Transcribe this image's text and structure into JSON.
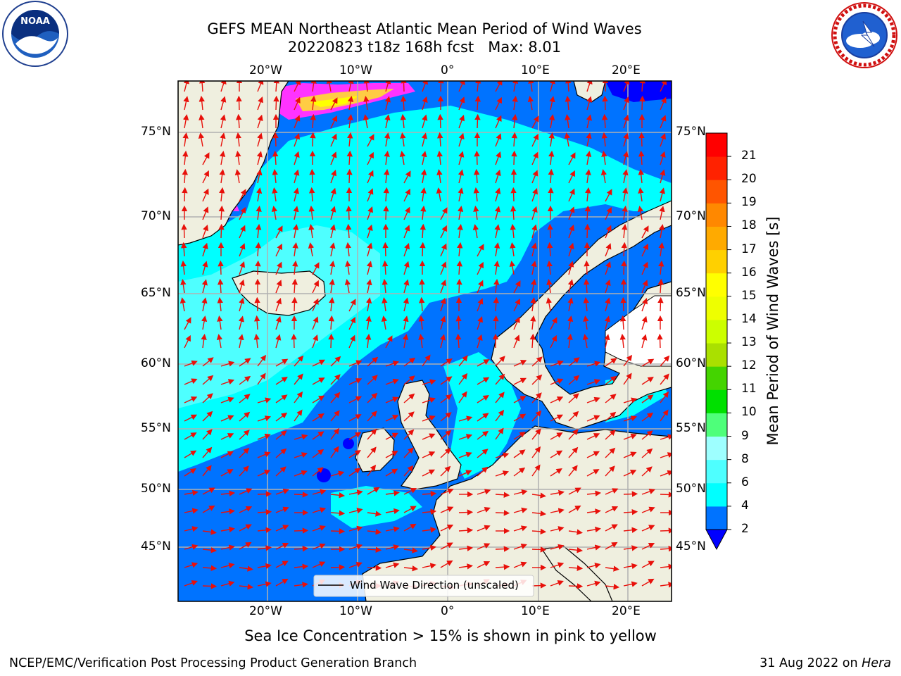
{
  "header": {
    "title_line1": "GEFS MEAN Northeast Atlantic Mean Period of Wind Waves",
    "title_line2": "20220823 t18z 168h fcst   Max: 8.01"
  },
  "logos": {
    "left": "noara-logo",
    "right": "nws-logo",
    "nws_text": "NATIONAL WEATHER SERVICE"
  },
  "map": {
    "lon_labels": [
      "20°W",
      "10°W",
      "0°",
      "10°E",
      "20°E"
    ],
    "lat_labels": [
      "75°N",
      "70°N",
      "65°N",
      "60°N",
      "55°N",
      "50°N",
      "45°N"
    ],
    "legend_label": "Wind Wave Direction (unscaled)",
    "colors": {
      "land": "#efefdf",
      "ocean_low": "#0073ff",
      "ocean_mid": "#00ffff",
      "ocean_mid2": "#4effff",
      "ocean_deep": "#0000ff",
      "arrow": "#e8100a",
      "grid": "#b0b0b0",
      "ice_pink": "#ff33ff",
      "ice_yellow": "#ffff00"
    }
  },
  "colorbar": {
    "label": "Mean Period of Wind Waves [s]",
    "ticks": [
      "2",
      "4",
      "6",
      "8",
      "9",
      "10",
      "11",
      "12",
      "13",
      "14",
      "15",
      "16",
      "17",
      "18",
      "19",
      "20",
      "21"
    ],
    "colors": [
      "#0073ff",
      "#00ffff",
      "#4effff",
      "#9effff",
      "#4eff7a",
      "#00e000",
      "#44d400",
      "#aae000",
      "#ccff00",
      "#eeff00",
      "#ffff00",
      "#ffd000",
      "#ffaa00",
      "#ff8800",
      "#ff5500",
      "#ff2200",
      "#ff0000"
    ]
  },
  "notes": {
    "sea_ice": "Sea Ice Concentration > 15% is shown in pink to yellow"
  },
  "footer": {
    "left": "NCEP/EMC/Verification Post Processing Product Generation Branch",
    "right_prefix": "31 Aug 2022 on ",
    "right_machine": "Hera"
  }
}
